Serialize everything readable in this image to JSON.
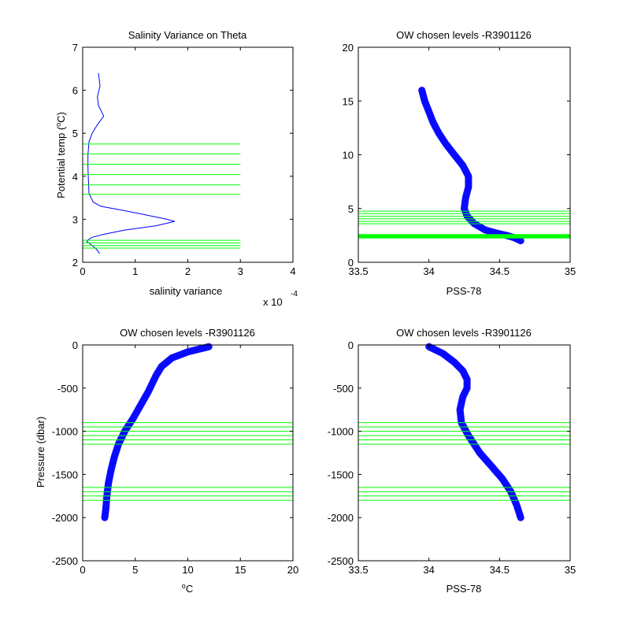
{
  "figure": {
    "background": "#ffffff",
    "colors": {
      "data": "#0000ff",
      "level": "#00ff00",
      "axis": "#000000"
    }
  },
  "chart_data": [
    {
      "type": "line",
      "title": "Salinity Variance on Theta",
      "xlabel": "salinity variance",
      "ylabel": "Potential temp (°C)",
      "ylabel_parts": {
        "main": "Potential temp (",
        "deg": "o",
        "unit": "C)"
      },
      "x_exponent": {
        "base": "x 10",
        "power": "-4"
      },
      "xlim": [
        0,
        4
      ],
      "ylim": [
        2,
        7
      ],
      "xticks": [
        0,
        1,
        2,
        3,
        4
      ],
      "yticks": [
        2,
        3,
        4,
        5,
        6,
        7
      ],
      "series": [
        {
          "color": "#0000ff",
          "x": [
            0.3,
            0.33,
            0.28,
            0.3,
            0.4,
            0.28,
            0.18,
            0.12,
            0.1,
            0.1,
            0.11,
            0.12,
            0.2,
            0.35,
            0.8,
            1.2,
            1.6,
            1.75,
            1.4,
            0.8,
            0.4,
            0.18,
            0.1,
            0.08,
            0.15,
            0.22,
            0.28,
            0.32
          ],
          "y": [
            6.4,
            6.1,
            5.85,
            5.65,
            5.4,
            5.2,
            5.0,
            4.8,
            4.5,
            4.2,
            3.9,
            3.6,
            3.4,
            3.3,
            3.2,
            3.1,
            3.0,
            2.95,
            2.85,
            2.75,
            2.65,
            2.58,
            2.52,
            2.48,
            2.42,
            2.35,
            2.28,
            2.2
          ]
        }
      ],
      "levels": {
        "xrange": [
          0,
          3
        ],
        "y": [
          4.75,
          4.52,
          4.28,
          4.04,
          3.8,
          3.58,
          2.51,
          2.45,
          2.39,
          2.33
        ]
      }
    },
    {
      "type": "scatter",
      "title": "OW chosen levels -R3901126",
      "xlabel": "PSS-78",
      "ylabel": "",
      "xlim": [
        33.5,
        35
      ],
      "ylim": [
        0,
        20
      ],
      "xticks": [
        33.5,
        34,
        34.5,
        35
      ],
      "yticks": [
        0,
        5,
        10,
        15,
        20
      ],
      "series": [
        {
          "color": "#0000ff",
          "x": [
            33.95,
            33.97,
            34.0,
            34.03,
            34.07,
            34.12,
            34.18,
            34.24,
            34.28,
            34.28,
            34.26,
            34.25,
            34.27,
            34.32,
            34.4,
            34.48,
            34.55,
            34.6,
            34.65
          ],
          "y": [
            16.0,
            15.0,
            14.0,
            13.0,
            12.0,
            11.0,
            10.0,
            9.0,
            8.0,
            7.0,
            6.0,
            5.0,
            4.3,
            3.6,
            3.0,
            2.7,
            2.5,
            2.3,
            2.0
          ]
        }
      ],
      "levels": {
        "xrange": [
          33.5,
          35
        ],
        "y": [
          4.75,
          4.52,
          4.28,
          4.04,
          3.8,
          3.58,
          2.51,
          2.45,
          2.39,
          2.33
        ]
      }
    },
    {
      "type": "scatter",
      "title": "OW chosen levels -R3901126",
      "xlabel": "°C",
      "xlabel_parts": {
        "deg": "o",
        "unit": "C"
      },
      "ylabel": "Pressure (dbar)",
      "xlim": [
        0,
        20
      ],
      "ylim": [
        -2500,
        0
      ],
      "xticks": [
        0,
        5,
        10,
        15,
        20
      ],
      "yticks": [
        -2500,
        -2000,
        -1500,
        -1000,
        -500,
        0
      ],
      "series": [
        {
          "color": "#0000ff",
          "x": [
            12.0,
            10.0,
            8.5,
            7.5,
            7.0,
            6.6,
            6.2,
            5.5,
            4.8,
            4.0,
            3.4,
            3.0,
            2.7,
            2.45,
            2.3,
            2.2,
            2.1
          ],
          "y": [
            -20,
            -80,
            -150,
            -250,
            -350,
            -450,
            -550,
            -700,
            -850,
            -1000,
            -1150,
            -1300,
            -1450,
            -1600,
            -1750,
            -1900,
            -2000
          ]
        }
      ],
      "levels": {
        "xrange": [
          0,
          20
        ],
        "y": [
          -900,
          -950,
          -1000,
          -1050,
          -1100,
          -1150,
          -1650,
          -1700,
          -1750,
          -1800
        ]
      }
    },
    {
      "type": "scatter",
      "title": "OW chosen levels -R3901126",
      "xlabel": "PSS-78",
      "ylabel": "",
      "xlim": [
        33.5,
        35
      ],
      "ylim": [
        -2500,
        0
      ],
      "xticks": [
        33.5,
        34,
        34.5,
        35
      ],
      "yticks": [
        -2500,
        -2000,
        -1500,
        -1000,
        -500,
        0
      ],
      "series": [
        {
          "color": "#0000ff",
          "x": [
            34.0,
            34.1,
            34.18,
            34.24,
            34.27,
            34.27,
            34.24,
            34.22,
            34.23,
            34.28,
            34.36,
            34.44,
            34.52,
            34.58,
            34.62,
            34.65
          ],
          "y": [
            -20,
            -100,
            -200,
            -300,
            -400,
            -500,
            -600,
            -750,
            -900,
            -1050,
            -1250,
            -1400,
            -1550,
            -1700,
            -1850,
            -2000
          ]
        }
      ],
      "levels": {
        "xrange": [
          33.5,
          35
        ],
        "y": [
          -900,
          -950,
          -1000,
          -1050,
          -1100,
          -1150,
          -1650,
          -1700,
          -1750,
          -1800
        ]
      }
    }
  ]
}
